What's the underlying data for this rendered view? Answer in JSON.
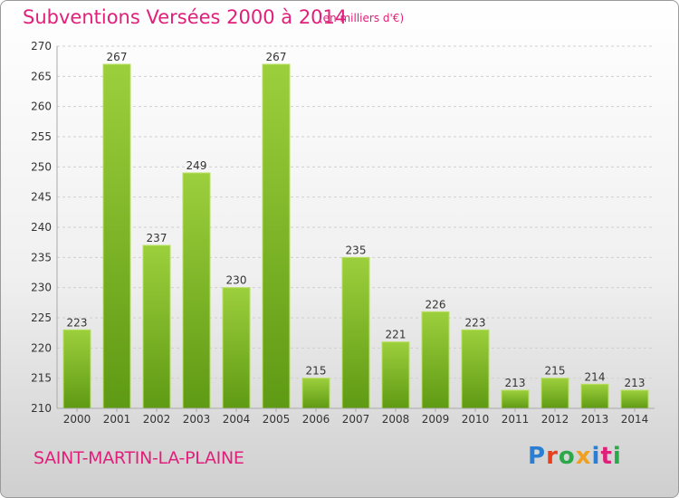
{
  "title": "Subventions Versées 2000 à 2014",
  "subtitle": "(en milliers d'€)",
  "commune": "SAINT-MARTIN-LA-PLAINE",
  "logo": {
    "text": "Proxiti",
    "colors": [
      "#2a7fd4",
      "#e8401c",
      "#2aa84a",
      "#f0a020",
      "#2a7fd4",
      "#e0207a",
      "#2aa84a"
    ]
  },
  "colors": {
    "title": "#e0207a",
    "bar_top": "#9ccf3c",
    "bar_bottom": "#5f9a14",
    "grid": "#cfcfcf"
  },
  "chart_data": {
    "type": "bar",
    "categories": [
      "2000",
      "2001",
      "2002",
      "2003",
      "2004",
      "2005",
      "2006",
      "2007",
      "2008",
      "2009",
      "2010",
      "2011",
      "2012",
      "2013",
      "2014"
    ],
    "values": [
      223,
      267,
      237,
      249,
      230,
      267,
      215,
      235,
      221,
      226,
      223,
      213,
      215,
      214,
      213
    ],
    "title": "Subventions Versées 2000 à 2014",
    "ylabel": "",
    "xlabel": "",
    "ylim": [
      210,
      270
    ],
    "yticks": [
      210,
      215,
      220,
      225,
      230,
      235,
      240,
      245,
      250,
      255,
      260,
      265,
      270
    ],
    "grid": true,
    "data_labels": true
  }
}
